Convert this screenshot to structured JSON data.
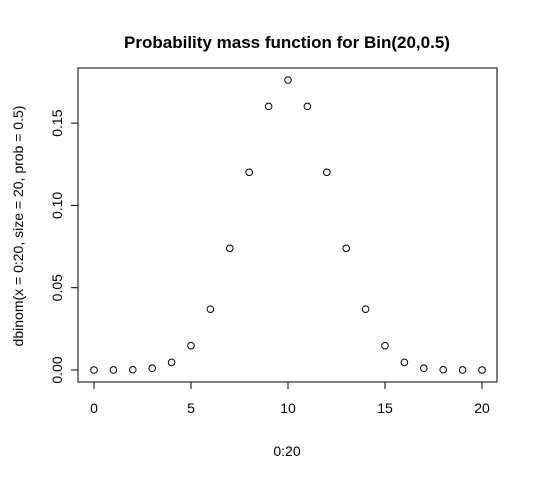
{
  "chart_data": {
    "type": "scatter",
    "title": "Probability mass function for Bin(20,0.5)",
    "xlabel": "0:20",
    "ylabel": "dbinom(x = 0:20, size = 20, prob = 0.5)",
    "xlim": [
      -1,
      21
    ],
    "ylim": [
      0,
      0.18
    ],
    "xticks": [
      0,
      5,
      10,
      15,
      20
    ],
    "xtick_labels": [
      "0",
      "5",
      "10",
      "15",
      "20"
    ],
    "yticks": [
      0.0,
      0.05,
      0.1,
      0.15
    ],
    "ytick_labels": [
      "0.00",
      "0.05",
      "0.10",
      "0.15"
    ],
    "grid": false,
    "marker": "open-circle",
    "points": [
      {
        "x": 0,
        "y": 1e-06
      },
      {
        "x": 1,
        "y": 1.9e-05
      },
      {
        "x": 2,
        "y": 0.000181
      },
      {
        "x": 3,
        "y": 0.001087
      },
      {
        "x": 4,
        "y": 0.004621
      },
      {
        "x": 5,
        "y": 0.014786
      },
      {
        "x": 6,
        "y": 0.036964
      },
      {
        "x": 7,
        "y": 0.073929
      },
      {
        "x": 8,
        "y": 0.120134
      },
      {
        "x": 9,
        "y": 0.160179
      },
      {
        "x": 10,
        "y": 0.176197
      },
      {
        "x": 11,
        "y": 0.160179
      },
      {
        "x": 12,
        "y": 0.120134
      },
      {
        "x": 13,
        "y": 0.073929
      },
      {
        "x": 14,
        "y": 0.036964
      },
      {
        "x": 15,
        "y": 0.014786
      },
      {
        "x": 16,
        "y": 0.004621
      },
      {
        "x": 17,
        "y": 0.001087
      },
      {
        "x": 18,
        "y": 0.000181
      },
      {
        "x": 19,
        "y": 1.9e-05
      },
      {
        "x": 20,
        "y": 1e-06
      }
    ]
  }
}
